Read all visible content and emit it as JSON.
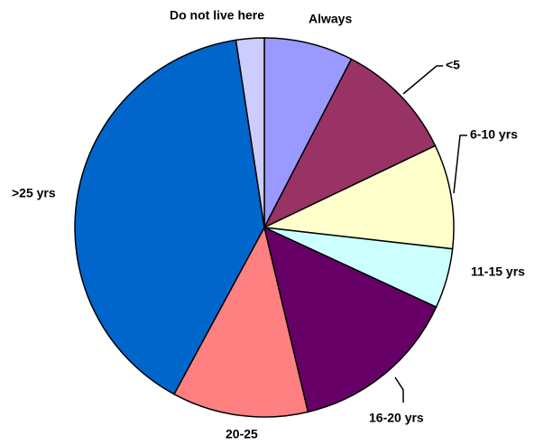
{
  "chart_data": {
    "type": "pie",
    "categories": [
      "Always",
      "<5",
      "6-10 yrs",
      "11-15 yrs",
      "16-20 yrs",
      "20-25",
      ">25 yrs",
      "Do not live here"
    ],
    "values": [
      7.6,
      10.3,
      8.9,
      5.1,
      14.4,
      11.6,
      39.7,
      2.4
    ],
    "colors": [
      "#9999ff",
      "#993366",
      "#ffffcc",
      "#ccffff",
      "#660066",
      "#ff8080",
      "#0066cc",
      "#ccccff"
    ]
  }
}
